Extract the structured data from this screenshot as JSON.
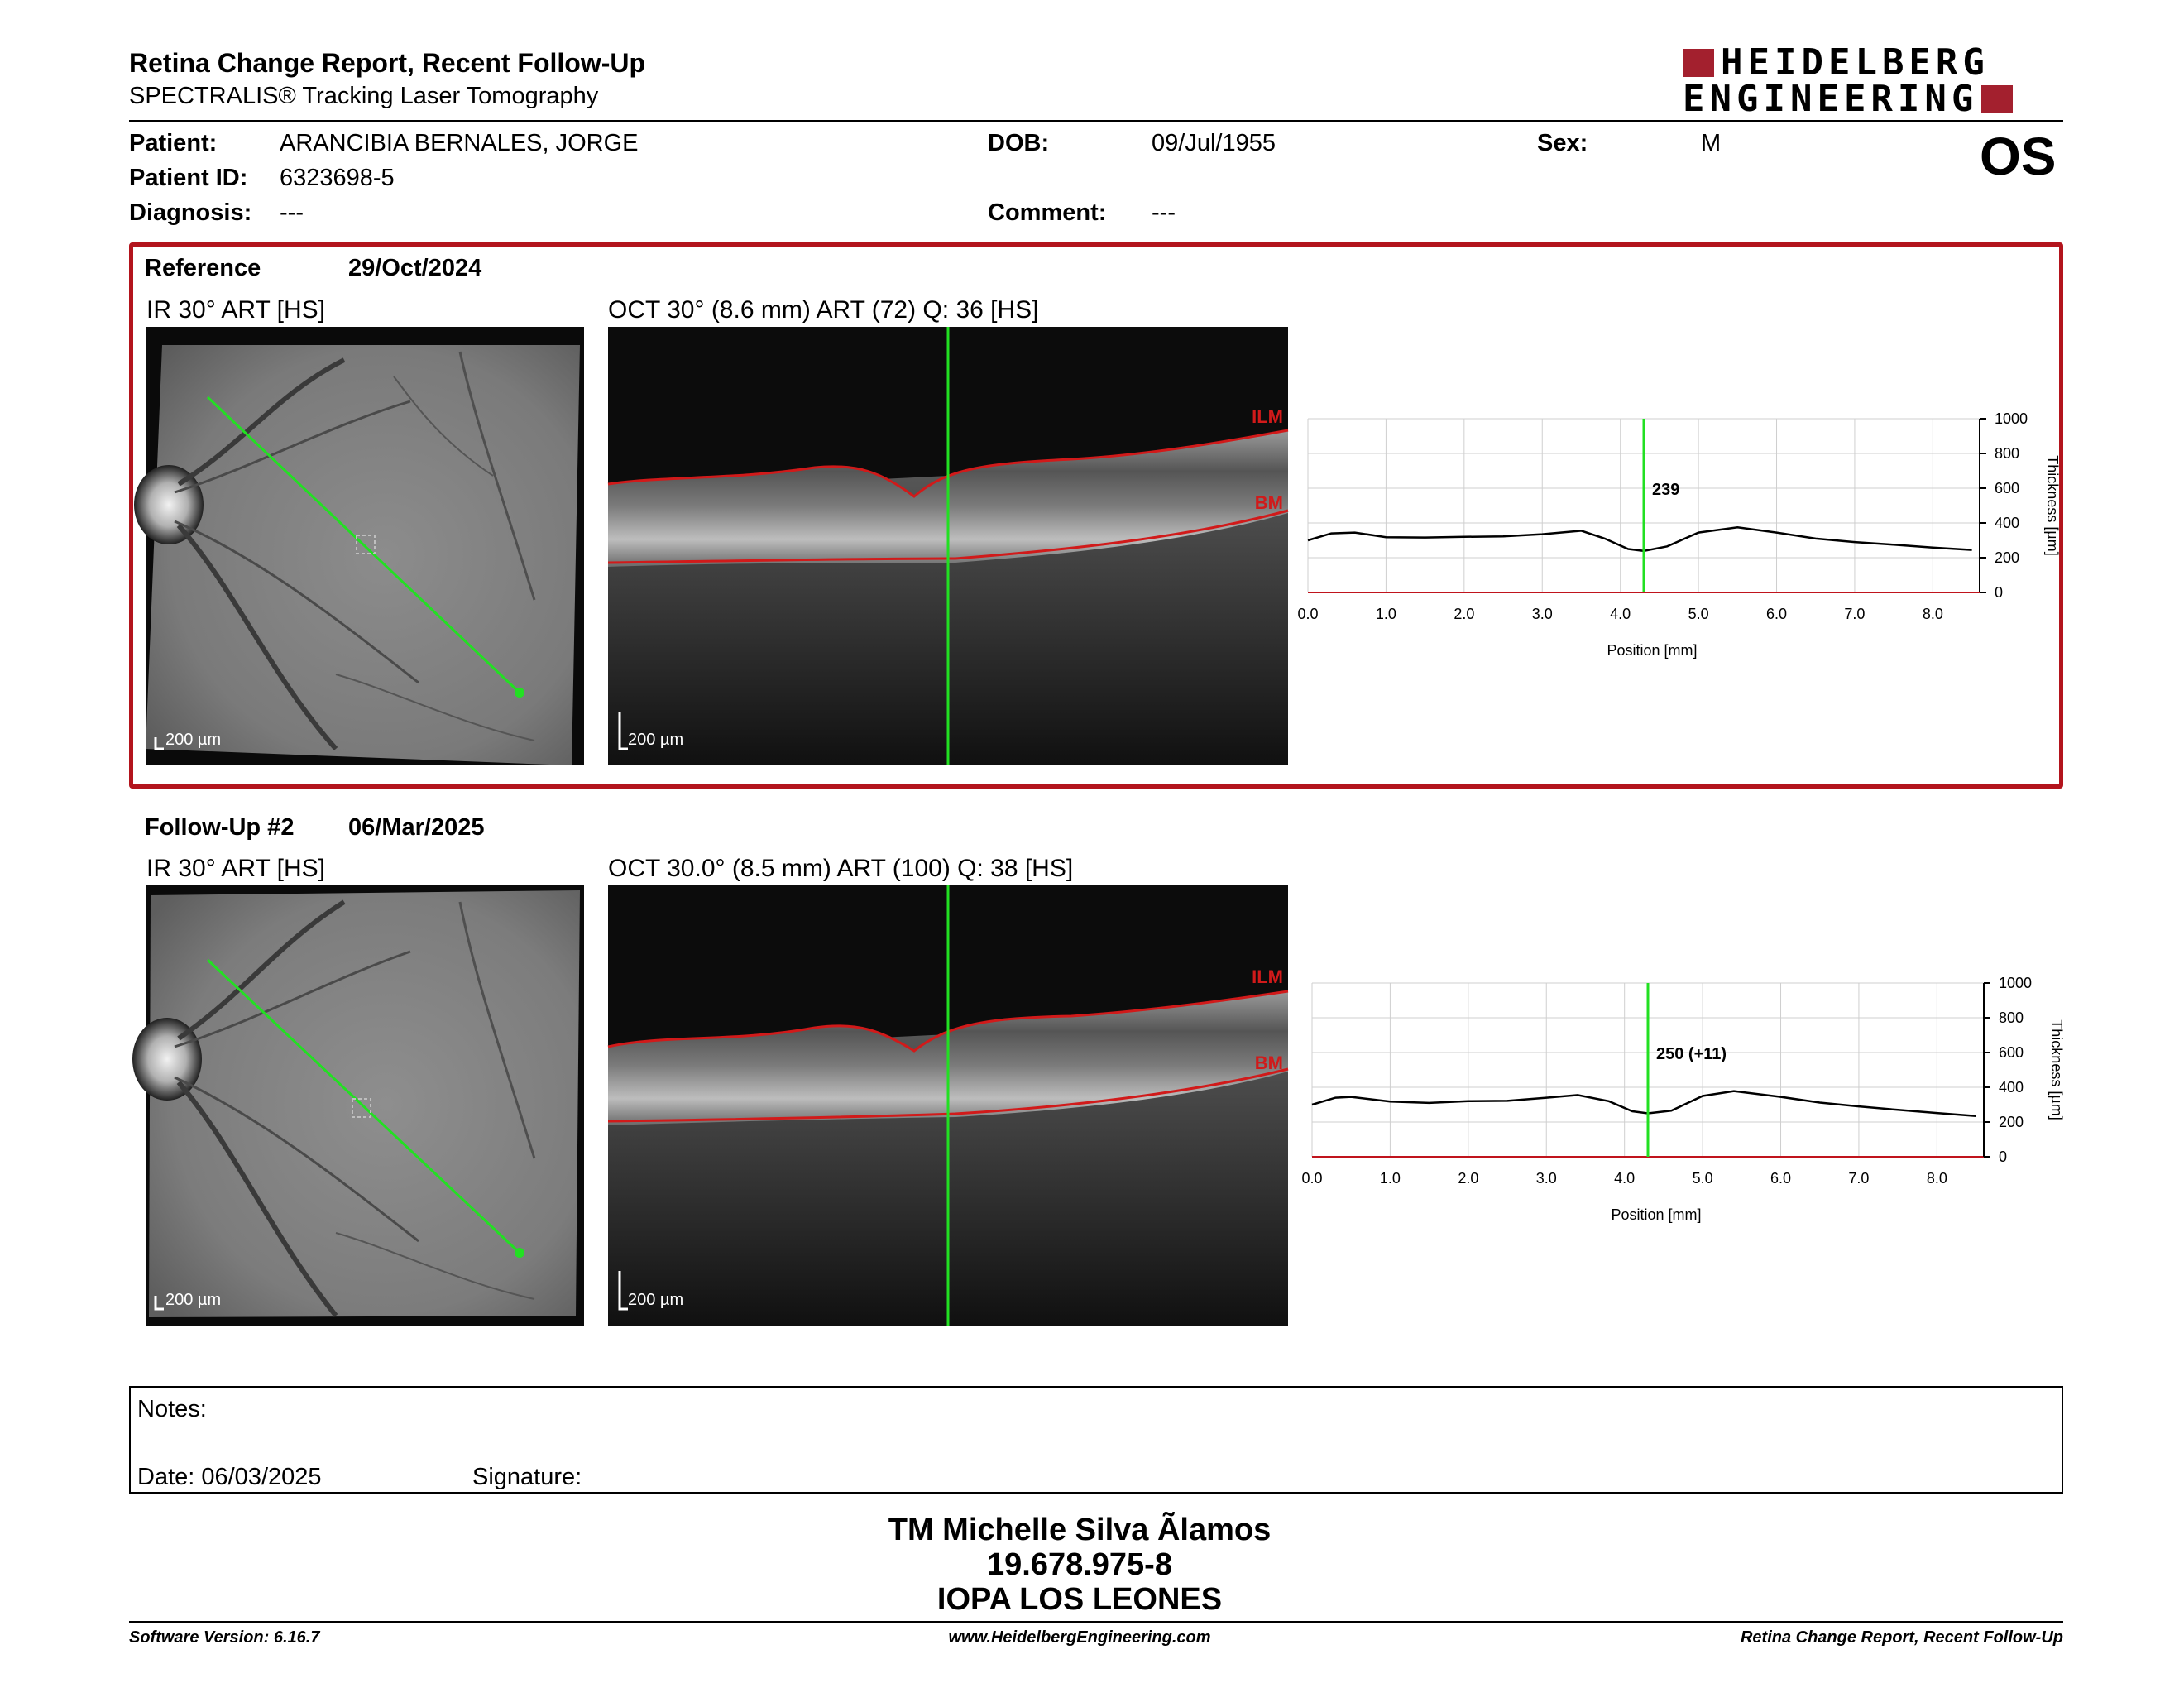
{
  "header": {
    "title": "Retina Change Report, Recent Follow-Up",
    "subtitle": "SPECTRALIS® Tracking Laser Tomography",
    "logo_line1": "HEIDELBERG",
    "logo_line2": "ENGINEERING",
    "eye": "OS"
  },
  "patient": {
    "patient_label": "Patient:",
    "patient_value": "ARANCIBIA BERNALES, JORGE",
    "dob_label": "DOB:",
    "dob_value": "09/Jul/1955",
    "sex_label": "Sex:",
    "sex_value": "M",
    "id_label": "Patient ID:",
    "id_value": "6323698-5",
    "diagnosis_label": "Diagnosis:",
    "diagnosis_value": "---",
    "comment_label": "Comment:",
    "comment_value": "---"
  },
  "reference": {
    "label": "Reference",
    "date": "29/Oct/2024",
    "ir_title": "IR 30° ART [HS]",
    "oct_title": "OCT 30° (8.6 mm) ART (72) Q: 36 [HS]",
    "ir_scale": "200 µm",
    "oct_scale": "200 µm",
    "ilm_label": "ILM",
    "bm_label": "BM",
    "thickness_value": "239"
  },
  "followup": {
    "label": "Follow-Up #2",
    "date": "06/Mar/2025",
    "ir_title": "IR 30° ART [HS]",
    "oct_title": "OCT 30.0° (8.5 mm) ART (100) Q: 38 [HS]",
    "ir_scale": "200 µm",
    "oct_scale": "200 µm",
    "ilm_label": "ILM",
    "bm_label": "BM",
    "thickness_value": "250 (+11)"
  },
  "chart_data": [
    {
      "type": "line",
      "title": "",
      "xlabel": "Position [mm]",
      "ylabel": "Thickness [µm]",
      "xlim": [
        0,
        8.6
      ],
      "ylim": [
        0,
        1000
      ],
      "x_ticks": [
        "0.0",
        "1.0",
        "2.0",
        "3.0",
        "4.0",
        "5.0",
        "6.0",
        "7.0",
        "8.0"
      ],
      "y_ticks": [
        "0",
        "200",
        "400",
        "600",
        "800",
        "1000"
      ],
      "grid": true,
      "cursor_x": 4.3,
      "cursor_label": "239",
      "series": [
        {
          "x": [
            0,
            0.3,
            0.6,
            1.0,
            1.5,
            2.0,
            2.5,
            3.0,
            3.5,
            3.8,
            4.1,
            4.3,
            4.6,
            5.0,
            5.5,
            6.0,
            6.5,
            7.0,
            7.5,
            8.0,
            8.5
          ],
          "values": [
            300,
            340,
            345,
            318,
            316,
            320,
            323,
            335,
            355,
            310,
            250,
            239,
            265,
            345,
            375,
            345,
            310,
            290,
            275,
            258,
            245
          ]
        }
      ]
    },
    {
      "type": "line",
      "title": "",
      "xlabel": "Position [mm]",
      "ylabel": "Thickness [µm]",
      "xlim": [
        0,
        8.6
      ],
      "ylim": [
        0,
        1000
      ],
      "x_ticks": [
        "0.0",
        "1.0",
        "2.0",
        "3.0",
        "4.0",
        "5.0",
        "6.0",
        "7.0",
        "8.0"
      ],
      "y_ticks": [
        "0",
        "200",
        "400",
        "600",
        "800",
        "1000"
      ],
      "grid": true,
      "cursor_x": 4.3,
      "cursor_label": "250 (+11)",
      "series": [
        {
          "x": [
            0,
            0.3,
            0.5,
            1.0,
            1.5,
            2.0,
            2.5,
            3.0,
            3.4,
            3.8,
            4.1,
            4.3,
            4.6,
            5.0,
            5.4,
            6.0,
            6.5,
            7.0,
            7.5,
            8.0,
            8.5
          ],
          "values": [
            300,
            340,
            345,
            318,
            310,
            320,
            322,
            340,
            355,
            320,
            262,
            250,
            265,
            350,
            378,
            345,
            312,
            290,
            270,
            252,
            235
          ]
        }
      ]
    }
  ],
  "notes": {
    "label": "Notes:",
    "date_label": "Date: 06/03/2025",
    "signature_label": "Signature:"
  },
  "signatory": {
    "name": "TM Michelle Silva Ãlamos",
    "rut": "19.678.975-8",
    "clinic": "IOPA LOS LEONES"
  },
  "footer": {
    "software": "Software Version: 6.16.7",
    "website": "www.HeidelbergEngineering.com",
    "report": "Retina Change Report, Recent Follow-Up"
  },
  "colors": {
    "brand_red": "#a3202e",
    "frame_red": "#b3141d",
    "scan_green": "#22e022",
    "layer_red": "#d11a1a"
  }
}
